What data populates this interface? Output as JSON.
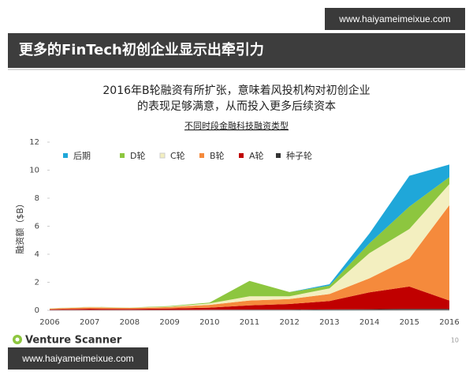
{
  "watermark_top": "www.haiyameimeixue.com",
  "header": {
    "title": "更多的FinTech初创企业显示出牵引力"
  },
  "subtitle": [
    "2016年B轮融资有所扩张，意味着风投机构对初创企业",
    "的表现足够满意，从而投入更多后续资本"
  ],
  "chart_data": {
    "type": "stacked_area",
    "title": "不同时段金融科技融资类型",
    "y_label": "融资额（$B）",
    "categories": [
      "2006",
      "2007",
      "2008",
      "2009",
      "2010",
      "2011",
      "2012",
      "2013",
      "2014",
      "2015",
      "2016"
    ],
    "series": [
      {
        "name": "后期",
        "color": "#1fa7d9",
        "values": [
          0,
          0,
          0,
          0,
          0,
          0,
          0,
          0.1,
          0.7,
          2.2,
          0.9
        ]
      },
      {
        "name": "D轮",
        "color": "#8dc63f",
        "values": [
          0.01,
          0.01,
          0.01,
          0.04,
          0.06,
          1.1,
          0.3,
          0.2,
          0.7,
          1.6,
          0.5
        ]
      },
      {
        "name": "C轮",
        "color": "#f3efc0",
        "values": [
          0.02,
          0.03,
          0.02,
          0.03,
          0.1,
          0.3,
          0.2,
          0.4,
          1.8,
          2.1,
          1.5
        ]
      },
      {
        "name": "B轮",
        "color": "#f58a3c",
        "values": [
          0.05,
          0.1,
          0.07,
          0.1,
          0.2,
          0.35,
          0.35,
          0.5,
          1.0,
          2.0,
          6.8
        ]
      },
      {
        "name": "A轮",
        "color": "#c00000",
        "values": [
          0.05,
          0.08,
          0.07,
          0.1,
          0.15,
          0.3,
          0.4,
          0.6,
          1.2,
          1.6,
          0.6
        ]
      },
      {
        "name": "种子轮",
        "color": "#333333",
        "values": [
          0.02,
          0.03,
          0.03,
          0.03,
          0.04,
          0.05,
          0.05,
          0.06,
          0.08,
          0.1,
          0.1
        ]
      }
    ],
    "ylim": [
      0,
      12
    ],
    "yticks": [
      0,
      2,
      4,
      6,
      8,
      10,
      12
    ],
    "grid": false
  },
  "footer": {
    "brand": "Venture Scanner",
    "page": "10"
  },
  "watermark_bottom": "www.haiyameimeixue.com"
}
